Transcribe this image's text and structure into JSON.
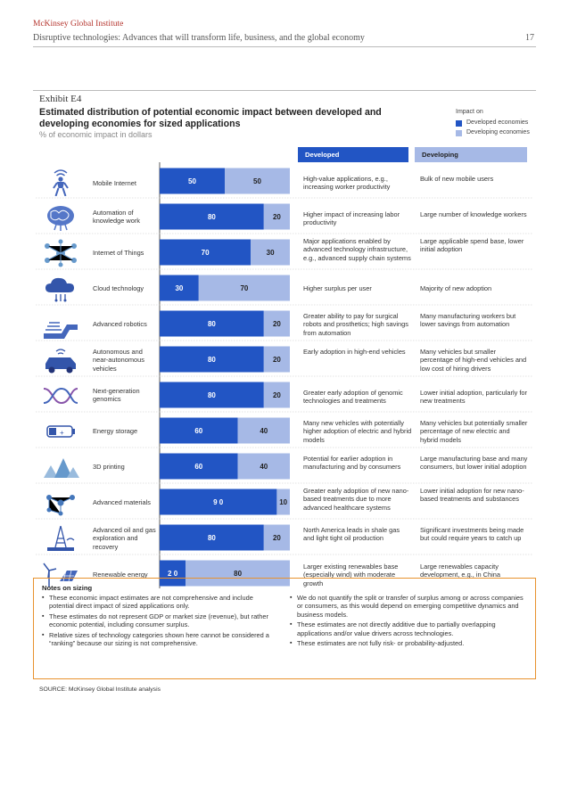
{
  "header": {
    "organization": "McKinsey Global Institute",
    "report_title": "Disruptive technologies: Advances that will transform life, business, and the global economy",
    "page_number": "17"
  },
  "exhibit": {
    "label": "Exhibit E4",
    "title": "Estimated distribution of potential economic impact between developed and developing economies for sized applications",
    "units": "% of economic impact in dollars"
  },
  "legend": {
    "title": "Impact on",
    "items": [
      {
        "label": "Developed economies",
        "color": "#2255c4"
      },
      {
        "label": "Developing economies",
        "color": "#a6b9e6"
      }
    ]
  },
  "columns": {
    "developed_header": "Developed",
    "developing_header": "Developing"
  },
  "colors": {
    "developed": "#2255c4",
    "developing": "#a6b9e6",
    "notes_border": "#e8922e",
    "header_accent": "#b5352e"
  },
  "chart_data": {
    "type": "bar",
    "orientation": "horizontal",
    "stacked": true,
    "normalized_to": 100,
    "categories": [
      "Mobile Internet",
      "Automation of knowledge work",
      "Internet of Things",
      "Cloud technology",
      "Advanced robotics",
      "Autonomous and near-autonomous vehicles",
      "Next-generation genomics",
      "Energy storage",
      "3D printing",
      "Advanced materials",
      "Advanced oil and gas exploration and recovery",
      "Renewable energy"
    ],
    "series": [
      {
        "name": "Developed economies",
        "values": [
          50,
          80,
          70,
          30,
          80,
          80,
          80,
          60,
          60,
          90,
          80,
          20
        ]
      },
      {
        "name": "Developing economies",
        "values": [
          50,
          20,
          30,
          70,
          20,
          20,
          20,
          40,
          40,
          10,
          20,
          80
        ]
      }
    ],
    "data_labels": [
      [
        "50",
        "50"
      ],
      [
        "80",
        "20"
      ],
      [
        "70",
        "30"
      ],
      [
        "30",
        "70"
      ],
      [
        "80",
        "20"
      ],
      [
        "80",
        "20"
      ],
      [
        "80",
        "20"
      ],
      [
        "60",
        "40"
      ],
      [
        "60",
        "40"
      ],
      [
        "9 0",
        "10"
      ],
      [
        "80",
        "20"
      ],
      [
        "2 0",
        "80"
      ]
    ],
    "xlim": [
      0,
      100
    ],
    "legend_position": "top-right"
  },
  "rows": [
    {
      "label": "Mobile Internet",
      "icon": "person-wifi-icon",
      "developed": "High-value applications, e.g., increasing worker productivity",
      "developing": "Bulk of new mobile users"
    },
    {
      "label": "Automation of knowledge work",
      "icon": "brain-icon",
      "developed": "Higher impact of increasing labor productivity",
      "developing": "Large number of knowledge workers"
    },
    {
      "label": "Internet of Things",
      "icon": "network-icon",
      "developed": "Major applications enabled by advanced technology infrastructure, e.g., advanced supply chain systems",
      "developing": "Large applicable spend base, lower initial adoption"
    },
    {
      "label": "Cloud technology",
      "icon": "cloud-icon",
      "developed": "Higher surplus per user",
      "developing": "Majority of new adoption"
    },
    {
      "label": "Advanced robotics",
      "icon": "robot-arm-icon",
      "developed": "Greater ability to pay for surgical robots and prosthetics; high savings from automation",
      "developing": "Many manufacturing workers but lower savings from automation"
    },
    {
      "label": "Autonomous and near-autonomous vehicles",
      "icon": "car-icon",
      "developed": "Early adoption in high-end vehicles",
      "developing": "Many vehicles but smaller percentage of high-end vehicles and low cost of hiring drivers"
    },
    {
      "label": "Next-generation genomics",
      "icon": "dna-icon",
      "developed": "Greater early adoption of genomic technologies and treatments",
      "developing": "Lower initial adoption, particularly for new treatments"
    },
    {
      "label": "Energy storage",
      "icon": "battery-icon",
      "developed": "Many new vehicles with potentially higher adoption of electric and hybrid models",
      "developing": "Many vehicles but potentially smaller percentage of new electric and hybrid models"
    },
    {
      "label": "3D printing",
      "icon": "pyramids-icon",
      "developed": "Potential for earlier adoption in manufacturing and by consumers",
      "developing": "Large manufacturing base and many consumers, but lower initial adoption"
    },
    {
      "label": "Advanced materials",
      "icon": "molecule-icon",
      "developed": "Greater early adoption of new nano-based treatments due to more advanced healthcare systems",
      "developing": "Lower initial adoption for new nano-based treatments and substances"
    },
    {
      "label": "Advanced oil and gas exploration and recovery",
      "icon": "oil-rig-icon",
      "developed": "North America leads in shale gas and light tight oil production",
      "developing": "Significant investments being made but could require years to catch up"
    },
    {
      "label": "Renewable energy",
      "icon": "wind-solar-icon",
      "developed": "Larger existing renewables base (especially wind) with moderate growth",
      "developing": "Large renewables capacity development, e.g., in China"
    }
  ],
  "notes": {
    "title": "Notes on sizing",
    "left": [
      "These economic impact estimates are not comprehensive and include potential direct impact of sized applications only.",
      "These estimates do not represent GDP or market size (revenue), but rather economic potential, including consumer surplus.",
      "Relative sizes of technology categories shown here cannot be considered a “ranking” because our sizing is not comprehensive."
    ],
    "right": [
      "We do not quantify the split or transfer of surplus among or across companies or consumers, as this would depend on emerging competitive dynamics and business models.",
      "These estimates are not directly additive due to partially overlapping applications and/or value drivers across technologies.",
      "These estimates are not fully risk- or probability-adjusted."
    ]
  },
  "source": "SOURCE: McKinsey Global Institute analysis"
}
